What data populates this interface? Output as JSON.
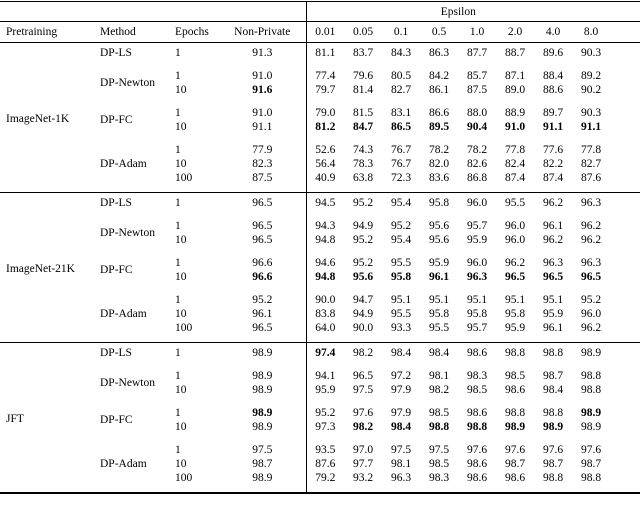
{
  "header": {
    "epsilon_group_label": "Epsilon",
    "columns": [
      "Pretraining",
      "Method",
      "Epochs",
      "Non-Private"
    ],
    "epsilons": [
      "0.01",
      "0.05",
      "0.1",
      "0.5",
      "1.0",
      "2.0",
      "4.0",
      "8.0"
    ]
  },
  "groups": [
    {
      "pretraining": "ImageNet-1K",
      "methods": [
        {
          "method": "DP-LS",
          "rows": [
            {
              "epochs": "1",
              "non_private": "91.3",
              "non_private_bold": false,
              "values": [
                "81.1",
                "83.7",
                "84.3",
                "86.3",
                "87.7",
                "88.7",
                "89.6",
                "90.3"
              ],
              "bold": [
                0,
                0,
                0,
                0,
                0,
                0,
                0,
                0
              ]
            }
          ]
        },
        {
          "method": "DP-Newton",
          "rows": [
            {
              "epochs": "1",
              "non_private": "91.0",
              "non_private_bold": false,
              "values": [
                "77.4",
                "79.6",
                "80.5",
                "84.2",
                "85.7",
                "87.1",
                "88.4",
                "89.2"
              ],
              "bold": [
                0,
                0,
                0,
                0,
                0,
                0,
                0,
                0
              ]
            },
            {
              "epochs": "10",
              "non_private": "91.6",
              "non_private_bold": true,
              "values": [
                "79.7",
                "81.4",
                "82.7",
                "86.1",
                "87.5",
                "89.0",
                "88.6",
                "90.2"
              ],
              "bold": [
                0,
                0,
                0,
                0,
                0,
                0,
                0,
                0
              ]
            }
          ]
        },
        {
          "method": "DP-FC",
          "rows": [
            {
              "epochs": "1",
              "non_private": "91.0",
              "non_private_bold": false,
              "values": [
                "79.0",
                "81.5",
                "83.1",
                "86.6",
                "88.0",
                "88.9",
                "89.7",
                "90.3"
              ],
              "bold": [
                0,
                0,
                0,
                0,
                0,
                0,
                0,
                0
              ]
            },
            {
              "epochs": "10",
              "non_private": "91.1",
              "non_private_bold": false,
              "values": [
                "81.2",
                "84.7",
                "86.5",
                "89.5",
                "90.4",
                "91.0",
                "91.1",
                "91.1"
              ],
              "bold": [
                1,
                1,
                1,
                1,
                1,
                1,
                1,
                1
              ]
            }
          ]
        },
        {
          "method": "DP-Adam",
          "rows": [
            {
              "epochs": "1",
              "non_private": "77.9",
              "non_private_bold": false,
              "values": [
                "52.6",
                "74.3",
                "76.7",
                "78.2",
                "78.2",
                "77.8",
                "77.6",
                "77.8"
              ],
              "bold": [
                0,
                0,
                0,
                0,
                0,
                0,
                0,
                0
              ]
            },
            {
              "epochs": "10",
              "non_private": "82.3",
              "non_private_bold": false,
              "values": [
                "56.4",
                "78.3",
                "76.7",
                "82.0",
                "82.6",
                "82.4",
                "82.2",
                "82.7"
              ],
              "bold": [
                0,
                0,
                0,
                0,
                0,
                0,
                0,
                0
              ]
            },
            {
              "epochs": "100",
              "non_private": "87.5",
              "non_private_bold": false,
              "values": [
                "40.9",
                "63.8",
                "72.3",
                "83.6",
                "86.8",
                "87.4",
                "87.4",
                "87.6"
              ],
              "bold": [
                0,
                0,
                0,
                0,
                0,
                0,
                0,
                0
              ]
            }
          ]
        }
      ]
    },
    {
      "pretraining": "ImageNet-21K",
      "methods": [
        {
          "method": "DP-LS",
          "rows": [
            {
              "epochs": "1",
              "non_private": "96.5",
              "non_private_bold": false,
              "values": [
                "94.5",
                "95.2",
                "95.4",
                "95.8",
                "96.0",
                "95.5",
                "96.2",
                "96.3"
              ],
              "bold": [
                0,
                0,
                0,
                0,
                0,
                0,
                0,
                0
              ]
            }
          ]
        },
        {
          "method": "DP-Newton",
          "rows": [
            {
              "epochs": "1",
              "non_private": "96.5",
              "non_private_bold": false,
              "values": [
                "94.3",
                "94.9",
                "95.2",
                "95.6",
                "95.7",
                "96.0",
                "96.1",
                "96.2"
              ],
              "bold": [
                0,
                0,
                0,
                0,
                0,
                0,
                0,
                0
              ]
            },
            {
              "epochs": "10",
              "non_private": "96.5",
              "non_private_bold": false,
              "values": [
                "94.8",
                "95.2",
                "95.4",
                "95.6",
                "95.9",
                "96.0",
                "96.2",
                "96.2"
              ],
              "bold": [
                0,
                0,
                0,
                0,
                0,
                0,
                0,
                0
              ]
            }
          ]
        },
        {
          "method": "DP-FC",
          "rows": [
            {
              "epochs": "1",
              "non_private": "96.6",
              "non_private_bold": false,
              "values": [
                "94.6",
                "95.2",
                "95.5",
                "95.9",
                "96.0",
                "96.2",
                "96.3",
                "96.3"
              ],
              "bold": [
                0,
                0,
                0,
                0,
                0,
                0,
                0,
                0
              ]
            },
            {
              "epochs": "10",
              "non_private": "96.6",
              "non_private_bold": true,
              "values": [
                "94.8",
                "95.6",
                "95.8",
                "96.1",
                "96.3",
                "96.5",
                "96.5",
                "96.5"
              ],
              "bold": [
                1,
                1,
                1,
                1,
                1,
                1,
                1,
                1
              ]
            }
          ]
        },
        {
          "method": "DP-Adam",
          "rows": [
            {
              "epochs": "1",
              "non_private": "95.2",
              "non_private_bold": false,
              "values": [
                "90.0",
                "94.7",
                "95.1",
                "95.1",
                "95.1",
                "95.1",
                "95.1",
                "95.2"
              ],
              "bold": [
                0,
                0,
                0,
                0,
                0,
                0,
                0,
                0
              ]
            },
            {
              "epochs": "10",
              "non_private": "96.1",
              "non_private_bold": false,
              "values": [
                "83.8",
                "94.9",
                "95.5",
                "95.8",
                "95.8",
                "95.8",
                "95.9",
                "96.0"
              ],
              "bold": [
                0,
                0,
                0,
                0,
                0,
                0,
                0,
                0
              ]
            },
            {
              "epochs": "100",
              "non_private": "96.5",
              "non_private_bold": false,
              "values": [
                "64.0",
                "90.0",
                "93.3",
                "95.5",
                "95.7",
                "95.9",
                "96.1",
                "96.2"
              ],
              "bold": [
                0,
                0,
                0,
                0,
                0,
                0,
                0,
                0
              ]
            }
          ]
        }
      ]
    },
    {
      "pretraining": "JFT",
      "methods": [
        {
          "method": "DP-LS",
          "rows": [
            {
              "epochs": "1",
              "non_private": "98.9",
              "non_private_bold": false,
              "values": [
                "97.4",
                "98.2",
                "98.4",
                "98.4",
                "98.6",
                "98.8",
                "98.8",
                "98.9"
              ],
              "bold": [
                1,
                0,
                0,
                0,
                0,
                0,
                0,
                0
              ]
            }
          ]
        },
        {
          "method": "DP-Newton",
          "rows": [
            {
              "epochs": "1",
              "non_private": "98.9",
              "non_private_bold": false,
              "values": [
                "94.1",
                "96.5",
                "97.2",
                "98.1",
                "98.3",
                "98.5",
                "98.7",
                "98.8"
              ],
              "bold": [
                0,
                0,
                0,
                0,
                0,
                0,
                0,
                0
              ]
            },
            {
              "epochs": "10",
              "non_private": "98.9",
              "non_private_bold": false,
              "values": [
                "95.9",
                "97.5",
                "97.9",
                "98.2",
                "98.5",
                "98.6",
                "98.4",
                "98.8"
              ],
              "bold": [
                0,
                0,
                0,
                0,
                0,
                0,
                0,
                0
              ]
            }
          ]
        },
        {
          "method": "DP-FC",
          "rows": [
            {
              "epochs": "1",
              "non_private": "98.9",
              "non_private_bold": true,
              "values": [
                "95.2",
                "97.6",
                "97.9",
                "98.5",
                "98.6",
                "98.8",
                "98.8",
                "98.9"
              ],
              "bold": [
                0,
                0,
                0,
                0,
                0,
                0,
                0,
                1
              ]
            },
            {
              "epochs": "10",
              "non_private": "98.9",
              "non_private_bold": false,
              "values": [
                "97.3",
                "98.2",
                "98.4",
                "98.8",
                "98.8",
                "98.9",
                "98.9",
                "98.9"
              ],
              "bold": [
                0,
                1,
                1,
                1,
                1,
                1,
                1,
                0
              ]
            }
          ]
        },
        {
          "method": "DP-Adam",
          "rows": [
            {
              "epochs": "1",
              "non_private": "97.5",
              "non_private_bold": false,
              "values": [
                "93.5",
                "97.0",
                "97.5",
                "97.5",
                "97.6",
                "97.6",
                "97.6",
                "97.6"
              ],
              "bold": [
                0,
                0,
                0,
                0,
                0,
                0,
                0,
                0
              ]
            },
            {
              "epochs": "10",
              "non_private": "98.7",
              "non_private_bold": false,
              "values": [
                "87.6",
                "97.7",
                "98.1",
                "98.5",
                "98.6",
                "98.7",
                "98.7",
                "98.7"
              ],
              "bold": [
                0,
                0,
                0,
                0,
                0,
                0,
                0,
                0
              ]
            },
            {
              "epochs": "100",
              "non_private": "98.9",
              "non_private_bold": false,
              "values": [
                "79.2",
                "93.2",
                "96.3",
                "98.3",
                "98.6",
                "98.6",
                "98.8",
                "98.8"
              ],
              "bold": [
                0,
                0,
                0,
                0,
                0,
                0,
                0,
                0
              ]
            }
          ]
        }
      ]
    }
  ]
}
